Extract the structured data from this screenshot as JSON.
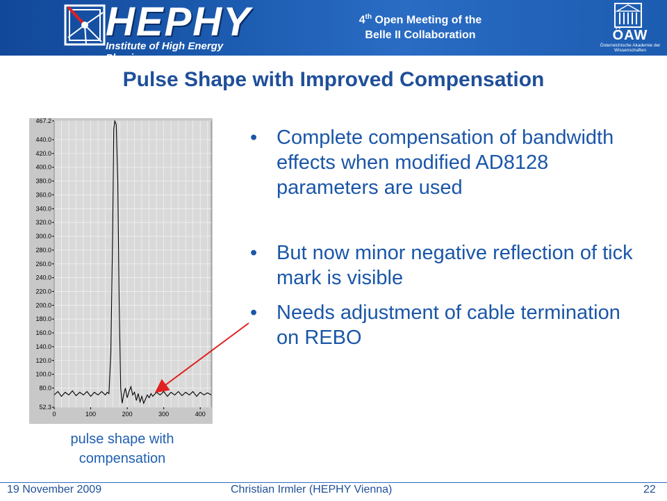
{
  "header": {
    "logo_word": "HEPHY",
    "logo_sub": "Institute of High Energy Physics",
    "meeting_prefix": "4",
    "meeting_sup": "th",
    "meeting_line1_rest": " Open Meeting of the",
    "meeting_line2": "Belle II Collaboration",
    "oaw_abbr": "ÖAW",
    "oaw_full": "Österreichische Akademie der Wissenschaften"
  },
  "title": "Pulse Shape with Improved Compensation",
  "bullets": [
    "Complete compensation of bandwidth effects when modified AD8128 parameters are used",
    "But now minor negative reflection of tick mark is visible",
    "Needs adjustment of cable termination on REBO"
  ],
  "caption": "pulse shape with compensation",
  "footer": {
    "date": "19 November 2009",
    "author": "Christian Irmler (HEPHY Vienna)",
    "page": "22"
  },
  "colors": {
    "header_bg": "#1c5cb0",
    "title": "#1f4f99",
    "bullet_text": "#1a56a8",
    "arrow": "#e02020",
    "plot_bg": "#c8c8c8"
  },
  "chart_data": {
    "type": "line",
    "title": "",
    "xlabel": "",
    "ylabel": "",
    "xlim": [
      0,
      430
    ],
    "ylim": [
      52.3,
      467.2
    ],
    "x_ticks": [
      "0",
      "100",
      "200",
      "300",
      "400"
    ],
    "y_ticks": [
      "467.2",
      "440.0",
      "420.0",
      "400.0",
      "380.0",
      "360.0",
      "340.0",
      "320.0",
      "300.0",
      "280.0",
      "260.0",
      "240.0",
      "220.0",
      "200.0",
      "180.0",
      "160.0",
      "140.0",
      "120.0",
      "100.0",
      "80.0",
      "52.3"
    ],
    "grid": true,
    "series": [
      {
        "x": [
          0,
          10,
          20,
          30,
          40,
          50,
          60,
          70,
          80,
          90,
          100,
          110,
          120,
          130,
          140,
          145,
          150,
          155,
          160,
          163,
          166,
          170,
          174,
          178,
          182,
          186,
          190,
          195,
          200,
          205,
          210,
          215,
          220,
          225,
          230,
          235,
          240,
          245,
          250,
          255,
          260,
          265,
          270,
          280,
          290,
          300,
          310,
          320,
          330,
          340,
          350,
          360,
          370,
          380,
          390,
          400,
          410,
          420,
          430
        ],
        "y": [
          70,
          75,
          68,
          74,
          70,
          76,
          69,
          74,
          70,
          75,
          68,
          74,
          70,
          75,
          70,
          74,
          72,
          130,
          300,
          455,
          467,
          462,
          380,
          200,
          80,
          58,
          70,
          80,
          66,
          75,
          82,
          70,
          74,
          62,
          72,
          60,
          68,
          58,
          64,
          70,
          66,
          72,
          68,
          74,
          70,
          75,
          68,
          74,
          70,
          75,
          69,
          74,
          70,
          75,
          68,
          74,
          70,
          73,
          70
        ]
      }
    ]
  }
}
